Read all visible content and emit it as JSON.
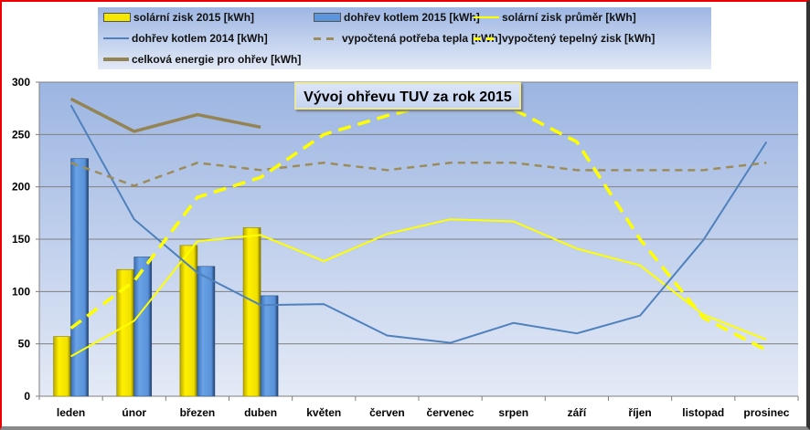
{
  "chart_data": {
    "type": "bar",
    "title": "Vývoj ohřevu TUV za rok 2015",
    "xlabel": "",
    "ylabel": "",
    "ylim": [
      0,
      300
    ],
    "yticks": [
      "0",
      "50",
      "100",
      "150",
      "200",
      "250",
      "300"
    ],
    "categories": [
      "leden",
      "únor",
      "březen",
      "duben",
      "květen",
      "červen",
      "červenec",
      "srpen",
      "září",
      "říjen",
      "listopad",
      "prosinec"
    ],
    "legend_position": "top",
    "grid": true,
    "series": [
      {
        "name": "solární zisk 2015 [kWh]",
        "kind": "bar",
        "color": "#f5e800",
        "values": [
          57,
          121,
          144,
          161,
          null,
          null,
          null,
          null,
          null,
          null,
          null,
          null
        ]
      },
      {
        "name": "dohřev kotlem 2015 [kWh]",
        "kind": "bar",
        "color": "#5b96dd",
        "values": [
          227,
          133,
          124,
          96,
          null,
          null,
          null,
          null,
          null,
          null,
          null,
          null
        ]
      },
      {
        "name": "solární zisk průměr [kWh]",
        "kind": "line",
        "color": "#ffff00",
        "dash": "solid",
        "values": [
          38,
          72,
          148,
          154,
          129,
          155,
          169,
          167,
          141,
          125,
          78,
          54
        ]
      },
      {
        "name": "dohřev kotlem 2014 [kWh]",
        "kind": "line",
        "color": "#4f81bd",
        "dash": "solid",
        "values": [
          278,
          169,
          118,
          87,
          88,
          58,
          51,
          70,
          60,
          77,
          149,
          243
        ]
      },
      {
        "name": "vypočtená potřeba tepla [kWh]",
        "kind": "line",
        "color": "#9c8c5c",
        "dash": "dashed",
        "values": [
          223,
          201,
          223,
          216,
          223,
          216,
          223,
          223,
          216,
          216,
          216,
          223
        ]
      },
      {
        "name": "vypočtený tepelný zisk [kWh]",
        "kind": "line",
        "color": "#ffff00",
        "dash": "dashed",
        "values": [
          65,
          110,
          190,
          209,
          250,
          268,
          283,
          274,
          243,
          150,
          75,
          44
        ]
      },
      {
        "name": "celková energie pro ohřev [kWh]",
        "kind": "line",
        "color": "#948454",
        "dash": "solid",
        "values": [
          284,
          253,
          269,
          257,
          null,
          null,
          null,
          null,
          null,
          null,
          null,
          null
        ]
      }
    ]
  }
}
